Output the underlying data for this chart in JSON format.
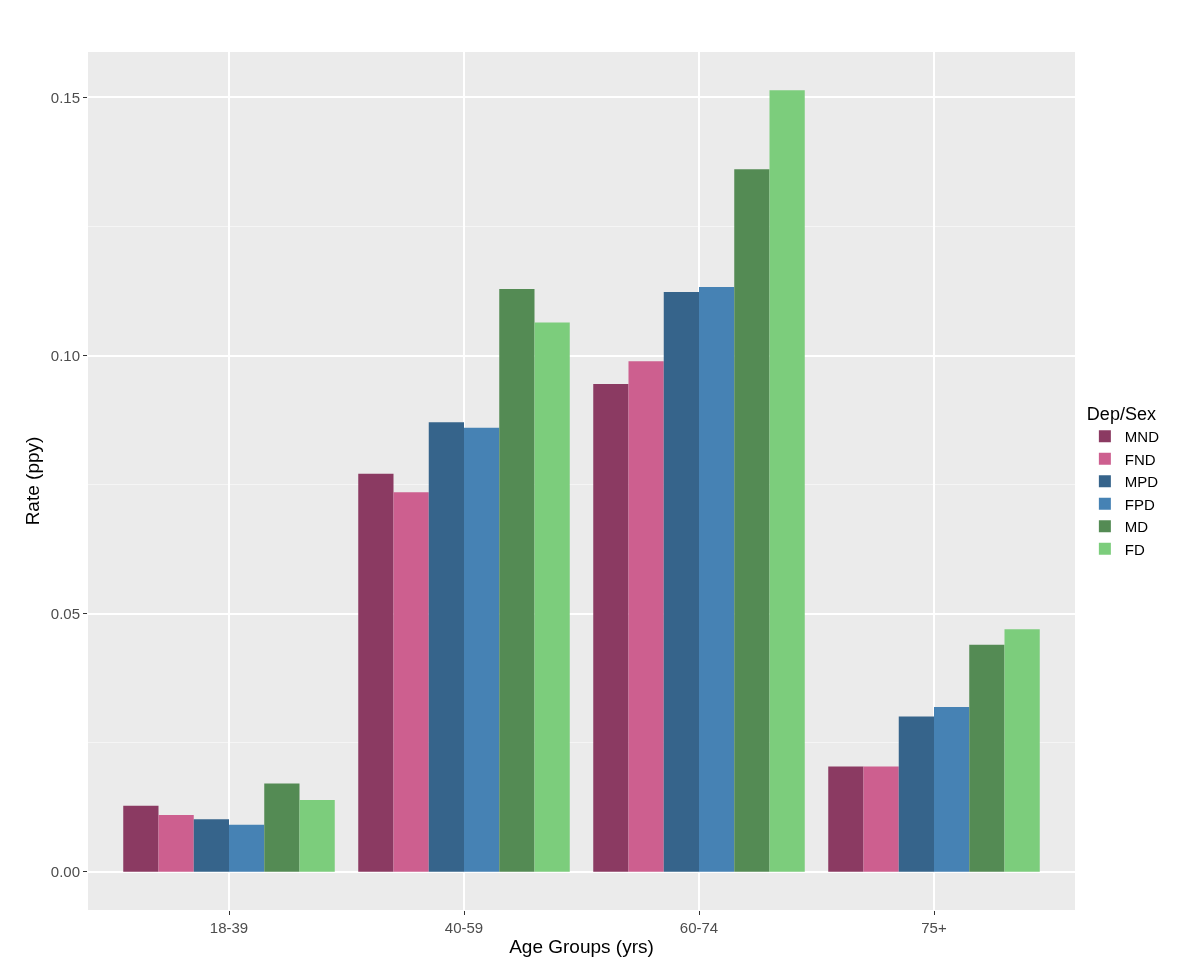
{
  "chart_data": {
    "type": "bar",
    "xlabel": "Age Groups (yrs)",
    "ylabel": "Rate (ppy)",
    "legend_title": "Dep/Sex",
    "categories": [
      "18-39",
      "40-59",
      "60-74",
      "75+"
    ],
    "series": [
      {
        "name": "MND",
        "color": "#8b3a62",
        "values": [
          0.0128,
          0.0771,
          0.0945,
          0.0204
        ]
      },
      {
        "name": "FND",
        "color": "#cd5f8f",
        "values": [
          0.011,
          0.0735,
          0.0989,
          0.0204
        ]
      },
      {
        "name": "MPD",
        "color": "#36648b",
        "values": [
          0.0102,
          0.0871,
          0.1123,
          0.0301
        ]
      },
      {
        "name": "FPD",
        "color": "#4682b4",
        "values": [
          0.0091,
          0.086,
          0.1133,
          0.0319
        ]
      },
      {
        "name": "MD",
        "color": "#548b54",
        "values": [
          0.0171,
          0.1129,
          0.1361,
          0.044
        ]
      },
      {
        "name": "FD",
        "color": "#7ccd7c",
        "values": [
          0.0139,
          0.1064,
          0.1514,
          0.047
        ]
      }
    ],
    "ylim": [
      -0.0074,
      0.1588
    ],
    "yticks": [
      {
        "value": 0,
        "label": "0.00"
      },
      0.05,
      {
        "value": 0.1,
        "label": "0.10"
      },
      0.15
    ],
    "grid": true,
    "legend": "right"
  }
}
